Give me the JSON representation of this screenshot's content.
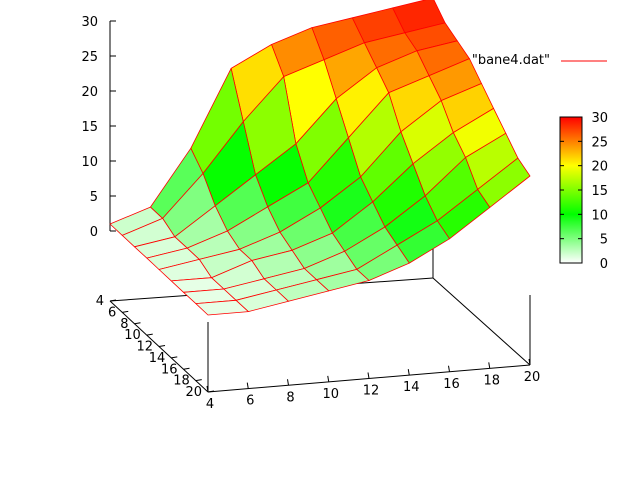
{
  "chart_data": {
    "type": "surface",
    "legend_entry": "\"bane4.dat\"",
    "legend_line_color": "#ff0000",
    "mesh_line_color": "#ff0000",
    "x_ticks": [
      4,
      6,
      8,
      10,
      12,
      14,
      16,
      18,
      20
    ],
    "y_ticks": [
      4,
      6,
      8,
      10,
      12,
      14,
      16,
      18,
      20
    ],
    "z_ticks": [
      0,
      5,
      10,
      15,
      20,
      25,
      30
    ],
    "colorbar_ticks": [
      0,
      5,
      10,
      15,
      20,
      25,
      30
    ],
    "xlim": [
      4,
      20
    ],
    "ylim": [
      4,
      20
    ],
    "zlim": [
      0,
      30
    ],
    "colormap": [
      {
        "value": 0,
        "color": "#ffffff"
      },
      {
        "value": 10,
        "color": "#00ff00"
      },
      {
        "value": 20,
        "color": "#ffff00"
      },
      {
        "value": 30,
        "color": "#ff0000"
      }
    ],
    "grid_x": [
      4,
      6,
      8,
      10,
      12,
      14,
      16,
      18,
      20
    ],
    "grid_y": [
      4,
      6,
      8,
      10,
      12,
      14,
      16,
      18,
      20
    ],
    "z_values": [
      [
        1,
        3,
        11,
        22,
        25,
        27,
        28,
        29,
        30
      ],
      [
        1,
        3,
        9,
        16,
        22,
        24,
        26,
        27,
        28
      ],
      [
        1,
        2,
        6,
        10,
        14,
        20,
        24,
        26,
        27
      ],
      [
        1,
        2,
        4,
        7,
        10,
        16,
        22,
        24,
        26
      ],
      [
        1,
        2,
        3,
        5,
        8,
        12,
        18,
        22,
        24
      ],
      [
        1,
        1,
        3,
        4,
        6,
        10,
        15,
        19,
        22
      ],
      [
        1,
        1,
        2,
        3,
        5,
        8,
        12,
        17,
        20
      ],
      [
        1,
        1,
        2,
        3,
        4,
        7,
        10,
        14,
        18
      ],
      [
        1,
        1,
        2,
        3,
        4,
        6,
        9,
        13,
        17
      ]
    ]
  }
}
